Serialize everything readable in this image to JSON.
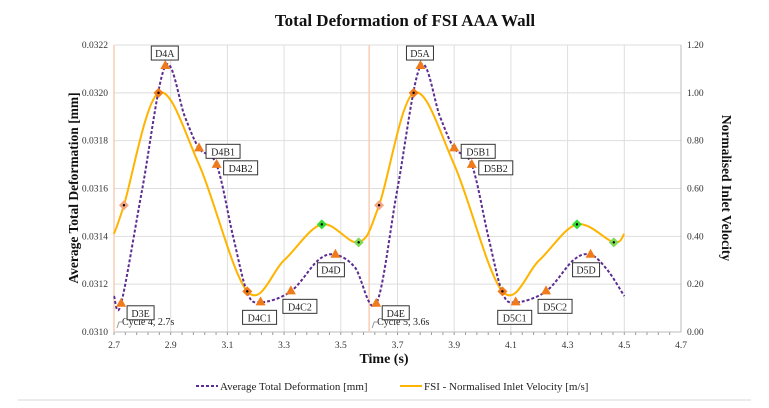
{
  "chart_data": {
    "type": "line",
    "title": "Total Deformation of FSI AAA Wall",
    "xlabel": "Time (s)",
    "ylabel": "Average Total Deformation [mm]",
    "y2label": "Normalised Inlet Velocity",
    "xlim": [
      2.7,
      4.7
    ],
    "ylim": [
      0.031,
      0.0322
    ],
    "y2lim": [
      0.0,
      1.2
    ],
    "xticks": [
      "2.7",
      "2.9",
      "3.1",
      "3.3",
      "3.5",
      "3.7",
      "3.9",
      "4.1",
      "4.3",
      "4.5",
      "4.7"
    ],
    "yticks": [
      "0.0310",
      "0.0312",
      "0.0314",
      "0.0316",
      "0.0318",
      "0.0320",
      "0.0322"
    ],
    "y2ticks": [
      "0.00",
      "0.20",
      "0.40",
      "0.60",
      "0.80",
      "1.00",
      "1.20"
    ],
    "grid": true,
    "legend_position": "bottom",
    "series": [
      {
        "name": "Average Total Deformation [mm]",
        "axis": "left",
        "color": "#5b2c91",
        "style": "dashed",
        "x": [
          2.7,
          2.725,
          2.8,
          2.881,
          2.95,
          3.0,
          3.062,
          3.12,
          3.17,
          3.217,
          3.324,
          3.42,
          3.481,
          3.55,
          3.625,
          3.7,
          3.781,
          3.85,
          3.9,
          3.962,
          4.02,
          4.07,
          4.117,
          4.224,
          4.32,
          4.381,
          4.44,
          4.5
        ],
        "y": [
          0.03115,
          0.031118,
          0.0316,
          0.032112,
          0.0319,
          0.031768,
          0.031699,
          0.0314,
          0.031165,
          0.031124,
          0.03117,
          0.0313,
          0.031323,
          0.03127,
          0.031118,
          0.0316,
          0.032112,
          0.0319,
          0.031768,
          0.031699,
          0.0314,
          0.031165,
          0.031124,
          0.03117,
          0.0313,
          0.031323,
          0.03126,
          0.03115
        ]
      },
      {
        "name": "FSI - Normalised Inlet Velocity [m/s]",
        "axis": "right",
        "color": "#ffb400",
        "style": "solid",
        "x": [
          2.7,
          2.735,
          2.857,
          3.0,
          3.17,
          3.3,
          3.433,
          3.563,
          3.635,
          3.757,
          3.9,
          4.07,
          4.2,
          4.333,
          4.463,
          4.5
        ],
        "y": [
          0.41,
          0.53,
          1.0,
          0.7,
          0.17,
          0.3,
          0.45,
          0.375,
          0.53,
          1.0,
          0.7,
          0.17,
          0.3,
          0.45,
          0.375,
          0.41
        ]
      }
    ],
    "velocity_markers": [
      {
        "x": 2.735,
        "y": 0.53,
        "color": "#f4a582"
      },
      {
        "x": 2.857,
        "y": 1.0,
        "color": "#f07b1c"
      },
      {
        "x": 3.17,
        "y": 0.17,
        "color": "#f07b1c"
      },
      {
        "x": 3.433,
        "y": 0.45,
        "color": "#33dd33"
      },
      {
        "x": 3.563,
        "y": 0.375,
        "color": "#7ed957"
      },
      {
        "x": 3.635,
        "y": 0.53,
        "color": "#f4a582"
      },
      {
        "x": 3.757,
        "y": 1.0,
        "color": "#f07b1c"
      },
      {
        "x": 4.07,
        "y": 0.17,
        "color": "#f07b1c"
      },
      {
        "x": 4.333,
        "y": 0.45,
        "color": "#33dd33"
      },
      {
        "x": 4.463,
        "y": 0.375,
        "color": "#7ed957"
      }
    ],
    "annotations": [
      {
        "label": "D3E",
        "x": 2.725,
        "y": 0.031118,
        "pos": "right-low"
      },
      {
        "label": "D4A",
        "x": 2.881,
        "y": 0.032112,
        "pos": "above"
      },
      {
        "label": "D4B1",
        "x": 3.0,
        "y": 0.031768,
        "pos": "right"
      },
      {
        "label": "D4B2",
        "x": 3.062,
        "y": 0.031699,
        "pos": "right"
      },
      {
        "label": "D4C1",
        "x": 3.217,
        "y": 0.031124,
        "pos": "below-left"
      },
      {
        "label": "D4C2",
        "x": 3.324,
        "y": 0.03117,
        "pos": "below"
      },
      {
        "label": "D4D",
        "x": 3.481,
        "y": 0.031323,
        "pos": "below-left"
      },
      {
        "label": "D4E",
        "x": 3.625,
        "y": 0.031118,
        "pos": "right-low"
      },
      {
        "label": "D5A",
        "x": 3.781,
        "y": 0.032112,
        "pos": "above"
      },
      {
        "label": "D5B1",
        "x": 3.9,
        "y": 0.031768,
        "pos": "right"
      },
      {
        "label": "D5B2",
        "x": 3.962,
        "y": 0.031699,
        "pos": "right"
      },
      {
        "label": "D5C1",
        "x": 4.117,
        "y": 0.031124,
        "pos": "below-left"
      },
      {
        "label": "D5C2",
        "x": 4.224,
        "y": 0.03117,
        "pos": "below"
      },
      {
        "label": "D5D",
        "x": 4.381,
        "y": 0.031323,
        "pos": "below-left"
      }
    ],
    "cycle_markers": [
      {
        "x": 2.7,
        "label": "Cycle 4, 2.7s"
      },
      {
        "x": 3.6,
        "label": "Cycle 5, 3.6s"
      }
    ],
    "triangle_color": "#f07b1c"
  }
}
